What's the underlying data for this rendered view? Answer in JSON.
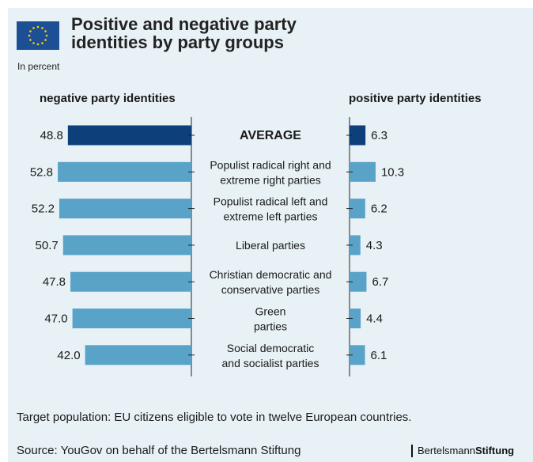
{
  "header": {
    "title_line1": "Positive and negative party",
    "title_line2": "identities by party groups",
    "subtitle": "In percent"
  },
  "colors": {
    "background_panel": "#e8f1f6",
    "average_bar": "#0d3f7a",
    "group_bar": "#5aa3c8",
    "flag_blue": "#1d4f95",
    "flag_stars": "#ffd200"
  },
  "chart_data": {
    "type": "bar",
    "orientation": "horizontal",
    "left_label": "negative party identities",
    "right_label": "positive party identities",
    "categories": [
      [
        "AVERAGE"
      ],
      [
        "Populist radical right and",
        "extreme right parties"
      ],
      [
        "Populist radical left and",
        "extreme left parties"
      ],
      [
        "Liberal parties"
      ],
      [
        "Christian democratic and",
        "conservative parties"
      ],
      [
        "Green",
        "parties"
      ],
      [
        "Social democratic",
        "and socialist parties"
      ]
    ],
    "series": [
      {
        "name": "negative party identities",
        "values": [
          48.8,
          52.8,
          52.2,
          50.7,
          47.8,
          47.0,
          42.0
        ],
        "labels": [
          "48.8",
          "52.8",
          "52.2",
          "50.7",
          "47.8",
          "47.0",
          "42.0"
        ]
      },
      {
        "name": "positive party identities",
        "values": [
          6.3,
          10.3,
          6.2,
          4.3,
          6.7,
          4.4,
          6.1
        ],
        "labels": [
          "6.3",
          "10.3",
          "6.2",
          "4.3",
          "6.7",
          "4.4",
          "6.1"
        ]
      }
    ],
    "highlight_category": "AVERAGE",
    "grid": false,
    "legend": "none"
  },
  "footer": {
    "note": "Target population: EU citizens eligible to vote in twelve European countries.",
    "source": "Source: YouGov on behalf of the Bertelsmann Stiftung"
  },
  "logo": {
    "part1": "Bertelsmann",
    "part2": "Stiftung"
  }
}
